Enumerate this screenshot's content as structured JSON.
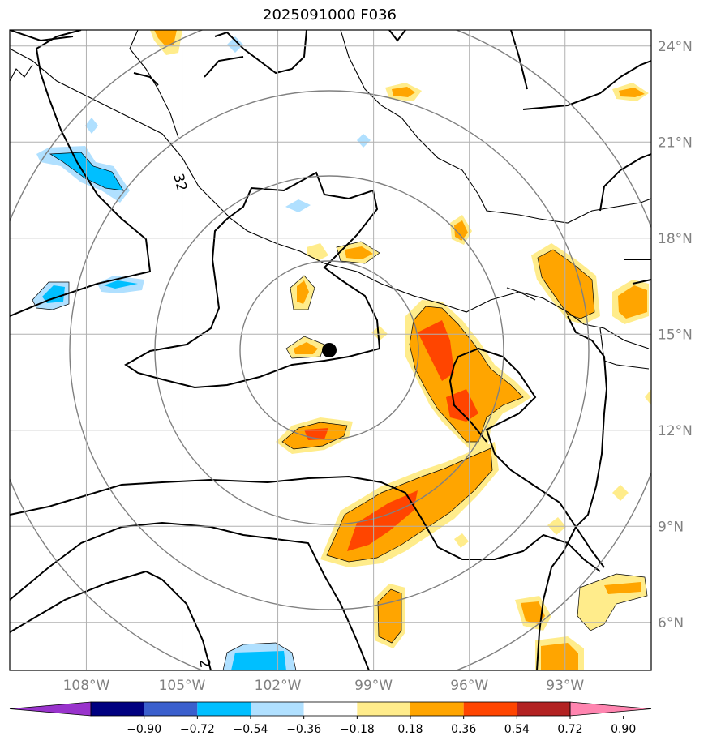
{
  "title": "2025091000 F036",
  "map": {
    "lon_ticks": [
      {
        "label": "108°W",
        "value": -108
      },
      {
        "label": "105°W",
        "value": -105
      },
      {
        "label": "102°W",
        "value": -102
      },
      {
        "label": "99°W",
        "value": -99
      },
      {
        "label": "96°W",
        "value": -96
      },
      {
        "label": "93°W",
        "value": -93
      }
    ],
    "lat_ticks": [
      {
        "label": "24°N",
        "value": 24
      },
      {
        "label": "21°N",
        "value": 21
      },
      {
        "label": "18°N",
        "value": 18
      },
      {
        "label": "15°N",
        "value": 15
      },
      {
        "label": "12°N",
        "value": 12
      },
      {
        "label": "9°N",
        "value": 9
      },
      {
        "label": "6°N",
        "value": 6
      }
    ],
    "lon_range": [
      -110.4,
      -90.3
    ],
    "lat_range": [
      4.5,
      24.5
    ],
    "center": {
      "lon": -100.9,
      "lat": 14.5
    },
    "range_ring_count": 4,
    "contour_labels": [
      "32",
      "2"
    ],
    "grid": true
  },
  "colorbar": {
    "ticks": [
      "−0.90",
      "−0.72",
      "−0.54",
      "−0.36",
      "−0.18",
      "0.18",
      "0.36",
      "0.54",
      "0.72",
      "0.90"
    ],
    "colors": [
      "#9933cc",
      "#000080",
      "#3a5fcd",
      "#00bfff",
      "#b0e0ff",
      "#ffffff",
      "#ffec8b",
      "#ffa500",
      "#ff4500",
      "#b22222",
      "#ff85b0"
    ],
    "extend": "both"
  },
  "colors": {
    "land_line": "#000000",
    "grid_line": "#b0b0b0",
    "ring_line": "#808080",
    "tick_label": "#808080"
  }
}
